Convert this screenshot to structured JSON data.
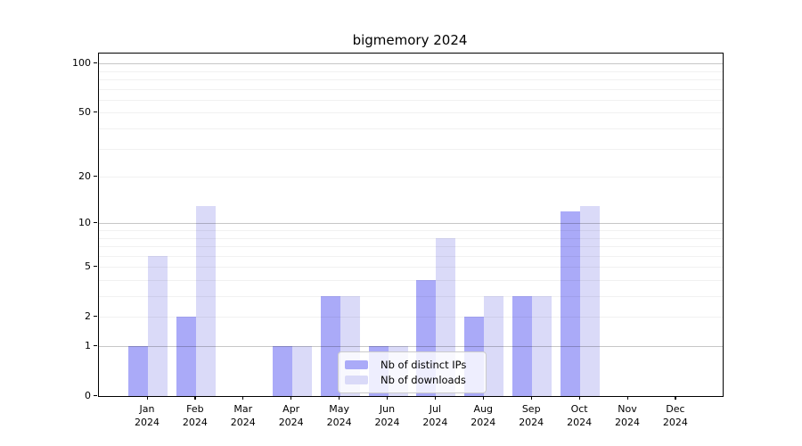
{
  "chart_data": {
    "type": "bar",
    "title": "bigmemory 2024",
    "categories": [
      "Jan",
      "Feb",
      "Mar",
      "Apr",
      "May",
      "Jun",
      "Jul",
      "Aug",
      "Sep",
      "Oct",
      "Nov",
      "Dec"
    ],
    "category_year": "2024",
    "series": [
      {
        "name": "Nb of distinct IPs",
        "color": "#aaaaf8",
        "values": [
          1,
          2,
          0,
          1,
          3,
          1,
          4,
          2,
          3,
          12,
          0,
          0
        ]
      },
      {
        "name": "Nb of downloads",
        "color": "#dadaf8",
        "values": [
          6,
          13,
          0,
          1,
          3,
          1,
          8,
          3,
          3,
          13,
          0,
          0
        ]
      }
    ],
    "xlabel": "",
    "ylabel": "",
    "yscale": "log1p",
    "ylim": [
      0,
      115
    ],
    "yticks": [
      0,
      1,
      2,
      5,
      10,
      20,
      50,
      100
    ],
    "major_gridlines": [
      1,
      10,
      100
    ],
    "minor_gridlines": [
      2,
      3,
      4,
      5,
      6,
      7,
      8,
      9,
      20,
      30,
      40,
      50,
      60,
      70,
      80,
      90
    ],
    "grid": true,
    "legend_position": "lower center"
  }
}
